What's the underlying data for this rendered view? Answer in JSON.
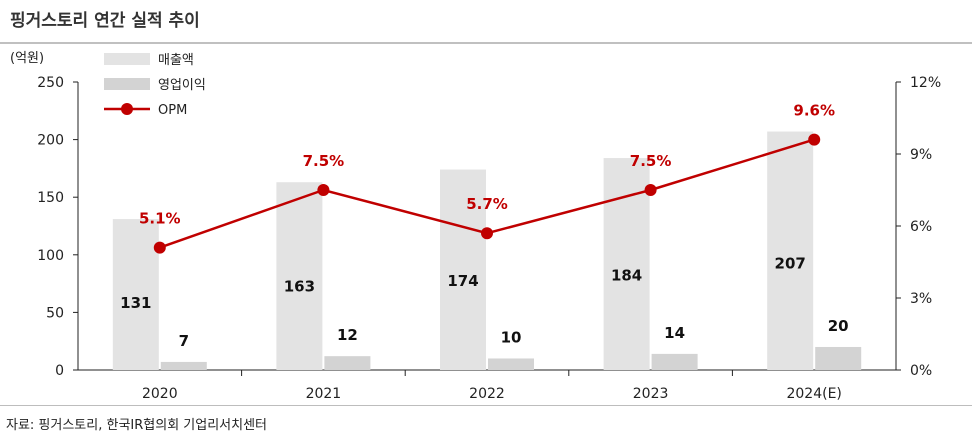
{
  "page": {
    "title": "핑거스토리 연간 실적 추이",
    "source": "자료: 핑거스토리, 한국IR협의회 기업리서치센터"
  },
  "chart_data": {
    "type": "bar",
    "title": "핑거스토리 연간 실적 추이",
    "categories": [
      "2020",
      "2021",
      "2022",
      "2023",
      "2024(E)"
    ],
    "y_left": {
      "unit_label": "(억원)",
      "ylim": [
        0,
        250
      ],
      "ticks": [
        "0",
        "50",
        "100",
        "150",
        "200",
        "250"
      ]
    },
    "y_right": {
      "ylim": [
        0,
        12
      ],
      "ticks": [
        "0%",
        "3%",
        "6%",
        "9%",
        "12%"
      ]
    },
    "grid": false,
    "legend_position": "top-left",
    "series": [
      {
        "name": "매출액",
        "type": "bar",
        "axis": "left",
        "color": "#e3e3e3",
        "values": [
          131,
          163,
          174,
          184,
          207
        ],
        "labels": [
          "131",
          "163",
          "174",
          "184",
          "207"
        ]
      },
      {
        "name": "영업이익",
        "type": "bar",
        "axis": "left",
        "color": "#d3d3d3",
        "values": [
          7,
          12,
          10,
          14,
          20
        ],
        "labels": [
          "7",
          "12",
          "10",
          "14",
          "20"
        ]
      },
      {
        "name": "OPM",
        "type": "line",
        "axis": "right",
        "color": "#c00000",
        "values": [
          5.1,
          7.5,
          5.7,
          7.5,
          9.6
        ],
        "labels": [
          "5.1%",
          "7.5%",
          "5.7%",
          "7.5%",
          "9.6%"
        ]
      }
    ]
  }
}
